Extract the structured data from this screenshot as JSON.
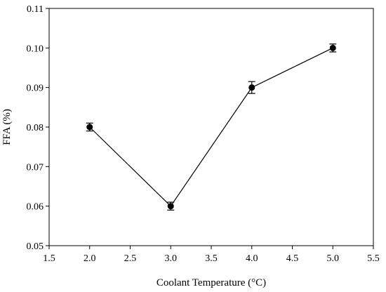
{
  "chart_data": {
    "type": "line",
    "title": "",
    "xlabel": "Coolant Temperature (°C)",
    "ylabel": "FFA (%)",
    "xlim": [
      1.5,
      5.5
    ],
    "ylim": [
      0.05,
      0.11
    ],
    "x_ticks": [
      "1.5",
      "2.0",
      "2.5",
      "3.0",
      "3.5",
      "4.0",
      "4.5",
      "5.0",
      "5.5"
    ],
    "y_ticks": [
      "0.05",
      "0.06",
      "0.07",
      "0.08",
      "0.09",
      "0.10",
      "0.11"
    ],
    "grid": false,
    "legend": "none",
    "series": [
      {
        "x": [
          2.0,
          3.0,
          4.0,
          5.0
        ],
        "values": [
          0.08,
          0.06,
          0.09,
          0.1
        ],
        "error": [
          0.001,
          0.001,
          0.0015,
          0.001
        ],
        "color": "#000000",
        "marker": "circle"
      }
    ]
  }
}
